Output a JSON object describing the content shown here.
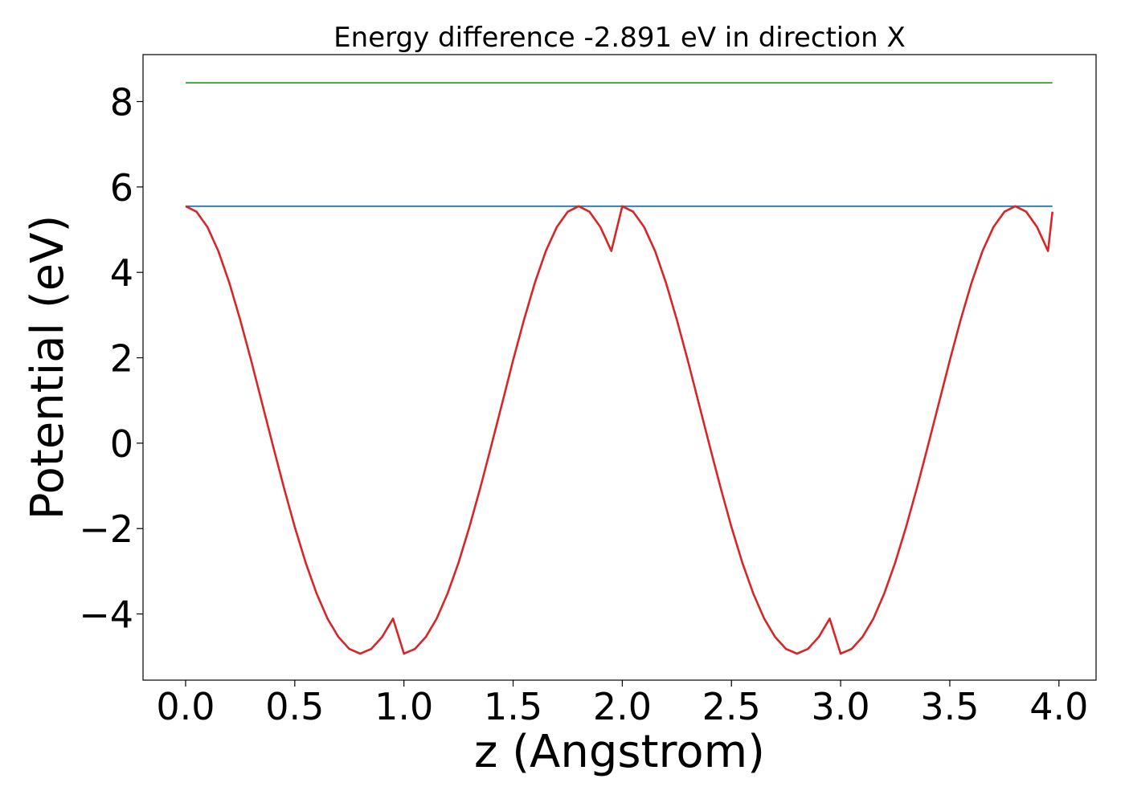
{
  "chart_data": {
    "type": "line",
    "title": "Energy difference -2.891 eV in direction X",
    "xlabel": "z (Angstrom)",
    "ylabel": "Potential (eV)",
    "xlim": [
      -0.195,
      4.17
    ],
    "ylim": [
      -5.55,
      9.1
    ],
    "xticks": [
      0.0,
      0.5,
      1.0,
      1.5,
      2.0,
      2.5,
      3.0,
      3.5,
      4.0
    ],
    "xtick_labels": [
      "0.0",
      "0.5",
      "1.0",
      "1.5",
      "2.0",
      "2.5",
      "3.0",
      "3.5",
      "4.0"
    ],
    "yticks": [
      -4,
      -2,
      0,
      2,
      4,
      6,
      8
    ],
    "ytick_labels": [
      "−4",
      "−2",
      "0",
      "2",
      "4",
      "6",
      "8"
    ],
    "grid": false,
    "legend": "none",
    "series": [
      {
        "color": "#2ca02c",
        "x": [
          0.0,
          3.97
        ],
        "y": [
          8.44,
          8.44
        ]
      },
      {
        "color": "#1f77b4",
        "x": [
          0.0,
          3.97
        ],
        "y": [
          5.55,
          5.55
        ]
      },
      {
        "color": "#d62728",
        "x": [
          0.0,
          0.05,
          0.1,
          0.15,
          0.2,
          0.25,
          0.3,
          0.35,
          0.4,
          0.45,
          0.5,
          0.55,
          0.6,
          0.65,
          0.7,
          0.75,
          0.8,
          0.85,
          0.9,
          0.95,
          1.0,
          1.05,
          1.1,
          1.15,
          1.2,
          1.25,
          1.3,
          1.35,
          1.4,
          1.45,
          1.5,
          1.55,
          1.6,
          1.65,
          1.7,
          1.75,
          1.8,
          1.85,
          1.9,
          1.95,
          2.0,
          2.05,
          2.1,
          2.15,
          2.2,
          2.25,
          2.3,
          2.35,
          2.4,
          2.45,
          2.5,
          2.55,
          2.6,
          2.65,
          2.7,
          2.75,
          2.8,
          2.85,
          2.9,
          2.95,
          3.0,
          3.05,
          3.1,
          3.15,
          3.2,
          3.25,
          3.3,
          3.35,
          3.4,
          3.45,
          3.5,
          3.55,
          3.6,
          3.65,
          3.7,
          3.75,
          3.8,
          3.85,
          3.9,
          3.95,
          3.97
        ],
        "y": [
          5.55,
          5.42,
          5.06,
          4.5,
          3.76,
          2.89,
          1.94,
          0.94,
          -0.06,
          -1.04,
          -1.96,
          -2.8,
          -3.52,
          -4.11,
          -4.54,
          -4.82,
          -4.93,
          -4.82,
          -4.54,
          -4.11,
          -4.93,
          -4.82,
          -4.54,
          -4.11,
          -3.52,
          -2.8,
          -1.96,
          -1.04,
          -0.06,
          0.94,
          1.94,
          2.89,
          3.76,
          4.5,
          5.06,
          5.42,
          5.55,
          5.42,
          5.06,
          4.5,
          5.55,
          5.42,
          5.06,
          4.5,
          3.76,
          2.89,
          1.94,
          0.94,
          -0.06,
          -1.04,
          -1.96,
          -2.8,
          -3.52,
          -4.11,
          -4.54,
          -4.82,
          -4.93,
          -4.82,
          -4.54,
          -4.11,
          -4.93,
          -4.82,
          -4.54,
          -4.11,
          -3.52,
          -2.8,
          -1.96,
          -1.04,
          -0.06,
          0.94,
          1.94,
          2.89,
          3.76,
          4.5,
          5.06,
          5.42,
          5.55,
          5.42,
          5.06,
          4.5,
          5.42
        ]
      }
    ]
  }
}
